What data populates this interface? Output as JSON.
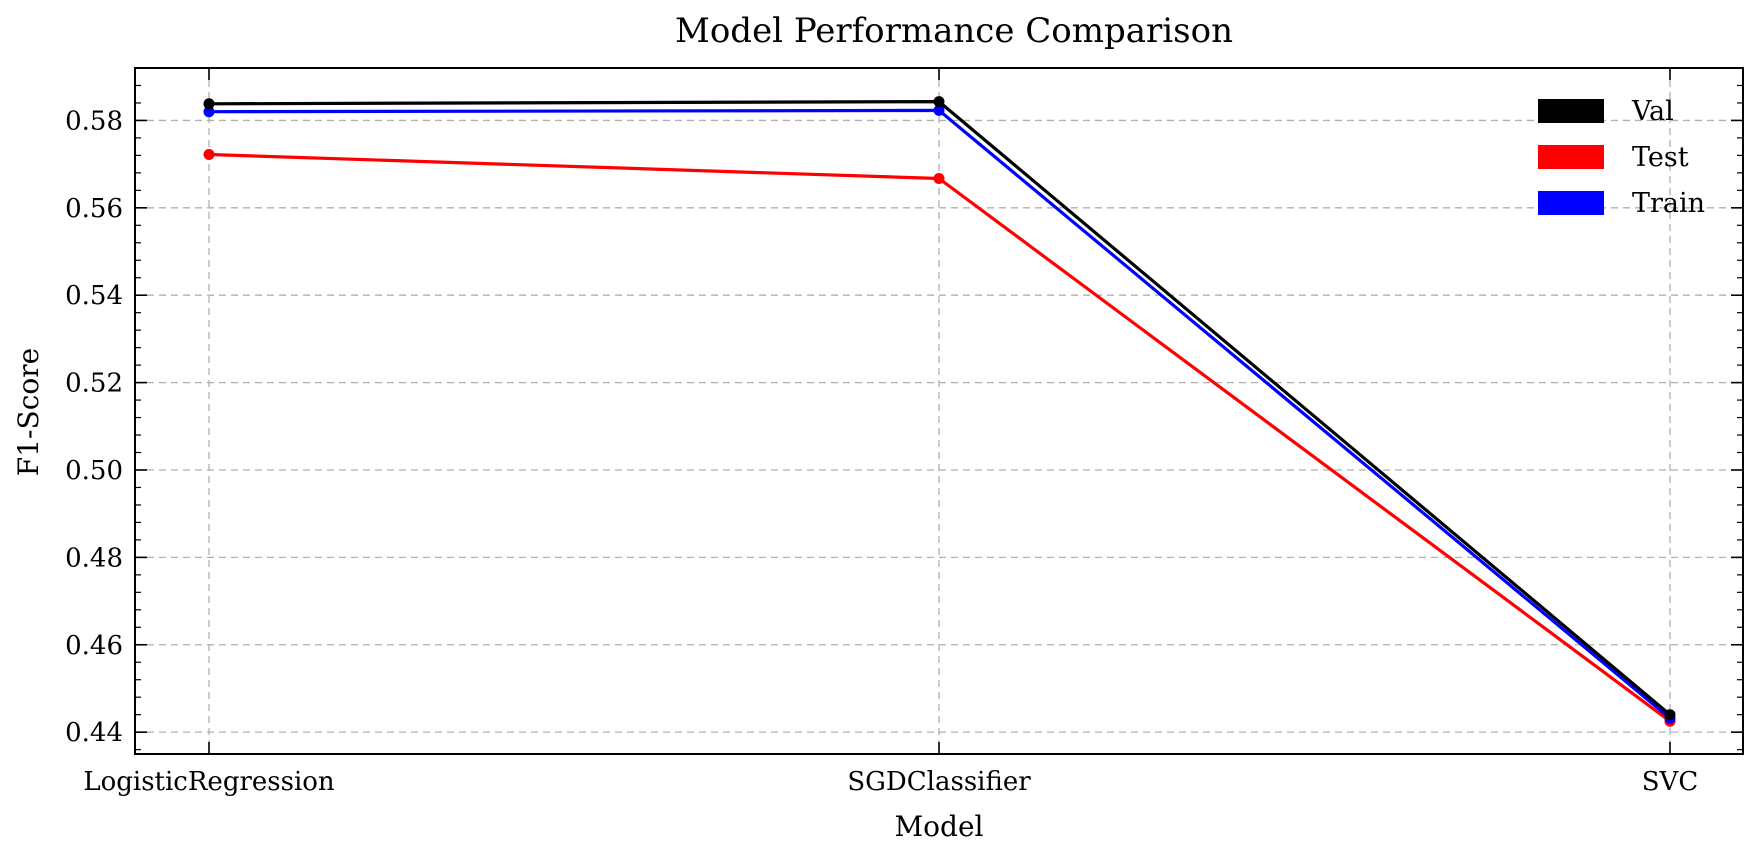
{
  "chart_data": {
    "type": "line",
    "title": "Model Performance Comparison",
    "xlabel": "Model",
    "ylabel": "F1-Score",
    "categories": [
      "LogisticRegression",
      "SGDClassifier",
      "SVC"
    ],
    "ylim": [
      0.435,
      0.592
    ],
    "yticks": [
      0.44,
      0.46,
      0.48,
      0.5,
      0.52,
      0.54,
      0.56,
      0.58
    ],
    "ytick_labels": [
      "0.44",
      "0.46",
      "0.48",
      "0.50",
      "0.52",
      "0.54",
      "0.56",
      "0.58"
    ],
    "grid": true,
    "legend_position": "top-right",
    "series": [
      {
        "name": "Val",
        "color": "#000000",
        "values": [
          0.5838,
          0.5843,
          0.444
        ]
      },
      {
        "name": "Test",
        "color": "#ff0000",
        "values": [
          0.5722,
          0.5667,
          0.4425
        ]
      },
      {
        "name": "Train",
        "color": "#0000ff",
        "values": [
          0.582,
          0.5823,
          0.4432
        ]
      }
    ],
    "draw_order": [
      "Test",
      "Train",
      "Val"
    ]
  }
}
